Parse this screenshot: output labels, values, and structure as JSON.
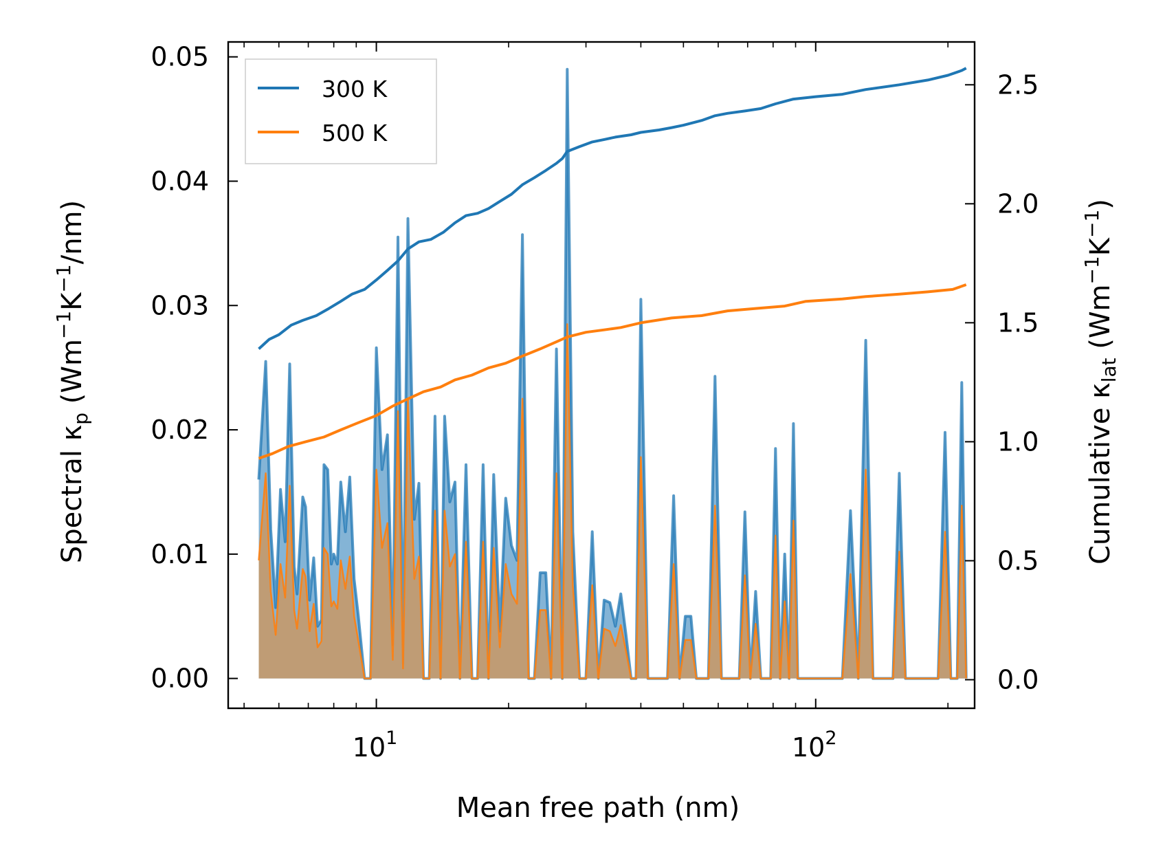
{
  "chart_data": {
    "type": "line",
    "xscale": "log",
    "xlabel": "Mean free path (nm)",
    "ylabel_left": {
      "text": "Spectral κ",
      "sub": "p",
      "unit_pre": " (Wm",
      "sup1": "−1",
      "unit_mid": "K",
      "sup2": "−1",
      "unit_post": "/nm)"
    },
    "ylabel_right": {
      "text": "Cumulative κ",
      "sub": "lat",
      "unit_pre": " (Wm",
      "sup1": "−1",
      "unit_mid": "K",
      "sup2": "−1",
      "unit_post": ")"
    },
    "xlim": [
      4.6,
      230
    ],
    "ylim_left": [
      -0.0024,
      0.0512
    ],
    "ylim_right": [
      -0.12,
      2.68
    ],
    "x_ticks": [
      {
        "value": 10,
        "base": "10",
        "exp": "1"
      },
      {
        "value": 100,
        "base": "10",
        "exp": "2"
      }
    ],
    "y_left_ticks": [
      "0.00",
      "0.01",
      "0.02",
      "0.03",
      "0.04",
      "0.05"
    ],
    "y_right_ticks": [
      "0.0",
      "0.5",
      "1.0",
      "1.5",
      "2.0",
      "2.5"
    ],
    "legend": [
      {
        "label": "300 K",
        "color": "#1f77b4"
      },
      {
        "label": "500 K",
        "color": "#ff7f0e"
      }
    ],
    "colors": {
      "s300": "#1f77b4",
      "s500": "#ff7f0e",
      "fill500": "#c49a6c"
    },
    "spectral_300K": [
      [
        5.4,
        0.016
      ],
      [
        5.6,
        0.0255
      ],
      [
        5.75,
        0.012
      ],
      [
        5.9,
        0.0057
      ],
      [
        6.05,
        0.0152
      ],
      [
        6.2,
        0.011
      ],
      [
        6.35,
        0.0253
      ],
      [
        6.5,
        0.009
      ],
      [
        6.6,
        0.0068
      ],
      [
        6.8,
        0.0146
      ],
      [
        6.9,
        0.0138
      ],
      [
        7.05,
        0.0063
      ],
      [
        7.2,
        0.0097
      ],
      [
        7.35,
        0.0042
      ],
      [
        7.5,
        0.0047
      ],
      [
        7.6,
        0.0172
      ],
      [
        7.75,
        0.0168
      ],
      [
        7.9,
        0.0092
      ],
      [
        8.0,
        0.01
      ],
      [
        8.15,
        0.0092
      ],
      [
        8.3,
        0.0158
      ],
      [
        8.5,
        0.0118
      ],
      [
        8.7,
        0.0162
      ],
      [
        8.9,
        0.008
      ],
      [
        9.1,
        0.005
      ],
      [
        9.4,
        0.0
      ],
      [
        9.7,
        0.0
      ],
      [
        10.0,
        0.0266
      ],
      [
        10.3,
        0.0168
      ],
      [
        10.6,
        0.0196
      ],
      [
        10.9,
        0.0027
      ],
      [
        11.2,
        0.0355
      ],
      [
        11.5,
        0.0012
      ],
      [
        11.8,
        0.037
      ],
      [
        12.2,
        0.0128
      ],
      [
        12.5,
        0.0157
      ],
      [
        12.8,
        0.0
      ],
      [
        13.2,
        0.0
      ],
      [
        13.6,
        0.0211
      ],
      [
        14.0,
        0.0
      ],
      [
        14.3,
        0.0211
      ],
      [
        14.7,
        0.0142
      ],
      [
        15.1,
        0.0158
      ],
      [
        15.5,
        0.0
      ],
      [
        16.0,
        0.0172
      ],
      [
        16.5,
        0.0
      ],
      [
        17.0,
        0.0
      ],
      [
        17.5,
        0.0172
      ],
      [
        18.0,
        0.0
      ],
      [
        18.5,
        0.0164
      ],
      [
        19.1,
        0.0038
      ],
      [
        19.7,
        0.0145
      ],
      [
        20.3,
        0.0107
      ],
      [
        20.9,
        0.0095
      ],
      [
        21.5,
        0.0357
      ],
      [
        22.2,
        0.0
      ],
      [
        22.9,
        0.0
      ],
      [
        23.6,
        0.0085
      ],
      [
        24.3,
        0.0085
      ],
      [
        25.0,
        0.0
      ],
      [
        25.7,
        0.0265
      ],
      [
        26.5,
        0.0
      ],
      [
        27.2,
        0.049
      ],
      [
        28.0,
        0.0118
      ],
      [
        29.0,
        0.0
      ],
      [
        30.0,
        0.0
      ],
      [
        31.0,
        0.0118
      ],
      [
        32.0,
        0.0
      ],
      [
        33.0,
        0.0063
      ],
      [
        34.0,
        0.0061
      ],
      [
        35.0,
        0.0042
      ],
      [
        36.0,
        0.0068
      ],
      [
        37.0,
        0.0035
      ],
      [
        38.0,
        0.0
      ],
      [
        39.0,
        0.0
      ],
      [
        40.0,
        0.0305
      ],
      [
        41.5,
        0.0
      ],
      [
        43.0,
        0.0
      ],
      [
        44.5,
        0.0
      ],
      [
        46.0,
        0.0
      ],
      [
        47.5,
        0.0147
      ],
      [
        49.0,
        0.0
      ],
      [
        50.5,
        0.005
      ],
      [
        52.0,
        0.005
      ],
      [
        53.5,
        0.0
      ],
      [
        55.0,
        0.0
      ],
      [
        57.0,
        0.0
      ],
      [
        59.0,
        0.0243
      ],
      [
        61.0,
        0.0
      ],
      [
        63.0,
        0.0
      ],
      [
        65.0,
        0.0
      ],
      [
        67.0,
        0.0
      ],
      [
        69.0,
        0.0134
      ],
      [
        71.0,
        0.0
      ],
      [
        73.0,
        0.007
      ],
      [
        75.0,
        0.0
      ],
      [
        77.0,
        0.0
      ],
      [
        79.0,
        0.0
      ],
      [
        81.0,
        0.0185
      ],
      [
        83.0,
        0.0
      ],
      [
        85.0,
        0.01
      ],
      [
        87.0,
        0.0
      ],
      [
        89.0,
        0.0205
      ],
      [
        91.0,
        0.0
      ],
      [
        95.0,
        0.0
      ],
      [
        100.0,
        0.0
      ],
      [
        105.0,
        0.0
      ],
      [
        110.0,
        0.0
      ],
      [
        115.0,
        0.0
      ],
      [
        120.0,
        0.0135
      ],
      [
        125.0,
        0.0
      ],
      [
        130.0,
        0.0272
      ],
      [
        135.0,
        0.0
      ],
      [
        140.0,
        0.0
      ],
      [
        150.0,
        0.0
      ],
      [
        155.0,
        0.0165
      ],
      [
        160.0,
        0.0
      ],
      [
        170.0,
        0.0
      ],
      [
        180.0,
        0.0
      ],
      [
        190.0,
        0.0
      ],
      [
        197.0,
        0.0198
      ],
      [
        203.0,
        0.0
      ],
      [
        210.0,
        0.0
      ],
      [
        215.0,
        0.0238
      ],
      [
        220.0,
        0.0
      ]
    ],
    "spectral_500K": [
      [
        5.4,
        0.0095
      ],
      [
        5.6,
        0.0165
      ],
      [
        5.75,
        0.007
      ],
      [
        5.9,
        0.0035
      ],
      [
        6.05,
        0.0092
      ],
      [
        6.2,
        0.0065
      ],
      [
        6.35,
        0.0155
      ],
      [
        6.5,
        0.0055
      ],
      [
        6.6,
        0.004
      ],
      [
        6.8,
        0.0088
      ],
      [
        6.9,
        0.0082
      ],
      [
        7.05,
        0.0038
      ],
      [
        7.2,
        0.006
      ],
      [
        7.35,
        0.0025
      ],
      [
        7.5,
        0.003
      ],
      [
        7.6,
        0.0105
      ],
      [
        7.75,
        0.01
      ],
      [
        7.9,
        0.0058
      ],
      [
        8.0,
        0.0062
      ],
      [
        8.15,
        0.0056
      ],
      [
        8.3,
        0.0095
      ],
      [
        8.5,
        0.0072
      ],
      [
        8.7,
        0.0098
      ],
      [
        8.9,
        0.005
      ],
      [
        9.1,
        0.003
      ],
      [
        9.4,
        0.0
      ],
      [
        9.7,
        0.0
      ],
      [
        10.0,
        0.0168
      ],
      [
        10.3,
        0.0105
      ],
      [
        10.6,
        0.0125
      ],
      [
        10.9,
        0.0015
      ],
      [
        11.2,
        0.0215
      ],
      [
        11.5,
        0.0008
      ],
      [
        11.8,
        0.0225
      ],
      [
        12.2,
        0.008
      ],
      [
        12.5,
        0.0098
      ],
      [
        12.8,
        0.0
      ],
      [
        13.2,
        0.0
      ],
      [
        13.6,
        0.0135
      ],
      [
        14.0,
        0.0
      ],
      [
        14.3,
        0.0135
      ],
      [
        14.7,
        0.009
      ],
      [
        15.1,
        0.01
      ],
      [
        15.5,
        0.0
      ],
      [
        16.0,
        0.011
      ],
      [
        16.5,
        0.0
      ],
      [
        17.0,
        0.0
      ],
      [
        17.5,
        0.011
      ],
      [
        18.0,
        0.0
      ],
      [
        18.5,
        0.0105
      ],
      [
        19.1,
        0.0025
      ],
      [
        19.7,
        0.0092
      ],
      [
        20.3,
        0.0068
      ],
      [
        20.9,
        0.006
      ],
      [
        21.5,
        0.0225
      ],
      [
        22.2,
        0.0
      ],
      [
        22.9,
        0.0
      ],
      [
        23.6,
        0.0055
      ],
      [
        24.3,
        0.0055
      ],
      [
        25.0,
        0.0
      ],
      [
        25.7,
        0.0165
      ],
      [
        26.5,
        0.0
      ],
      [
        27.2,
        0.0285
      ],
      [
        28.0,
        0.0075
      ],
      [
        29.0,
        0.0
      ],
      [
        30.0,
        0.0
      ],
      [
        31.0,
        0.0075
      ],
      [
        32.0,
        0.0
      ],
      [
        33.0,
        0.004
      ],
      [
        34.0,
        0.0038
      ],
      [
        35.0,
        0.0026
      ],
      [
        36.0,
        0.0043
      ],
      [
        37.0,
        0.0022
      ],
      [
        38.0,
        0.0
      ],
      [
        39.0,
        0.0
      ],
      [
        40.0,
        0.0178
      ],
      [
        41.5,
        0.0
      ],
      [
        43.0,
        0.0
      ],
      [
        44.5,
        0.0
      ],
      [
        46.0,
        0.0
      ],
      [
        47.5,
        0.0092
      ],
      [
        49.0,
        0.0
      ],
      [
        50.5,
        0.0031
      ],
      [
        52.0,
        0.0031
      ],
      [
        53.5,
        0.0
      ],
      [
        55.0,
        0.0
      ],
      [
        57.0,
        0.0
      ],
      [
        59.0,
        0.0139
      ],
      [
        61.0,
        0.0
      ],
      [
        63.0,
        0.0
      ],
      [
        65.0,
        0.0
      ],
      [
        67.0,
        0.0
      ],
      [
        69.0,
        0.0083
      ],
      [
        71.0,
        0.0
      ],
      [
        73.0,
        0.0044
      ],
      [
        75.0,
        0.0
      ],
      [
        77.0,
        0.0
      ],
      [
        79.0,
        0.0
      ],
      [
        81.0,
        0.0115
      ],
      [
        83.0,
        0.0
      ],
      [
        85.0,
        0.0062
      ],
      [
        87.0,
        0.0
      ],
      [
        89.0,
        0.0127
      ],
      [
        91.0,
        0.0
      ],
      [
        95.0,
        0.0
      ],
      [
        100.0,
        0.0
      ],
      [
        105.0,
        0.0
      ],
      [
        110.0,
        0.0
      ],
      [
        115.0,
        0.0
      ],
      [
        120.0,
        0.0084
      ],
      [
        125.0,
        0.0
      ],
      [
        130.0,
        0.0168
      ],
      [
        135.0,
        0.0
      ],
      [
        140.0,
        0.0
      ],
      [
        150.0,
        0.0
      ],
      [
        155.0,
        0.0102
      ],
      [
        160.0,
        0.0
      ],
      [
        170.0,
        0.0
      ],
      [
        180.0,
        0.0
      ],
      [
        190.0,
        0.0
      ],
      [
        197.0,
        0.0118
      ],
      [
        203.0,
        0.0
      ],
      [
        210.0,
        0.0
      ],
      [
        215.0,
        0.0139
      ],
      [
        220.0,
        0.0
      ]
    ],
    "cumulative_300K": [
      [
        5.4,
        1.39
      ],
      [
        5.7,
        1.43
      ],
      [
        6.0,
        1.45
      ],
      [
        6.4,
        1.49
      ],
      [
        6.8,
        1.51
      ],
      [
        7.3,
        1.53
      ],
      [
        7.8,
        1.56
      ],
      [
        8.3,
        1.59
      ],
      [
        8.8,
        1.62
      ],
      [
        9.4,
        1.64
      ],
      [
        10.0,
        1.68
      ],
      [
        10.6,
        1.72
      ],
      [
        11.2,
        1.76
      ],
      [
        11.8,
        1.81
      ],
      [
        12.5,
        1.84
      ],
      [
        13.3,
        1.85
      ],
      [
        14.2,
        1.88
      ],
      [
        15.1,
        1.92
      ],
      [
        16.0,
        1.95
      ],
      [
        17.0,
        1.96
      ],
      [
        18.0,
        1.98
      ],
      [
        19.1,
        2.01
      ],
      [
        20.3,
        2.04
      ],
      [
        21.5,
        2.08
      ],
      [
        22.9,
        2.11
      ],
      [
        24.3,
        2.14
      ],
      [
        25.7,
        2.17
      ],
      [
        26.5,
        2.19
      ],
      [
        27.2,
        2.22
      ],
      [
        29.0,
        2.24
      ],
      [
        31.0,
        2.26
      ],
      [
        33.0,
        2.27
      ],
      [
        35.0,
        2.28
      ],
      [
        38.0,
        2.29
      ],
      [
        40.0,
        2.3
      ],
      [
        44.0,
        2.31
      ],
      [
        47.0,
        2.32
      ],
      [
        50.0,
        2.33
      ],
      [
        55.0,
        2.35
      ],
      [
        59.0,
        2.37
      ],
      [
        63.0,
        2.38
      ],
      [
        69.0,
        2.39
      ],
      [
        75.0,
        2.4
      ],
      [
        81.0,
        2.42
      ],
      [
        89.0,
        2.44
      ],
      [
        100.0,
        2.45
      ],
      [
        115.0,
        2.46
      ],
      [
        130.0,
        2.48
      ],
      [
        155.0,
        2.5
      ],
      [
        180.0,
        2.52
      ],
      [
        200.0,
        2.54
      ],
      [
        215.0,
        2.56
      ],
      [
        220.0,
        2.57
      ]
    ],
    "cumulative_500K": [
      [
        5.4,
        0.93
      ],
      [
        5.8,
        0.95
      ],
      [
        6.3,
        0.98
      ],
      [
        6.9,
        1.0
      ],
      [
        7.6,
        1.02
      ],
      [
        8.3,
        1.05
      ],
      [
        9.1,
        1.08
      ],
      [
        10.0,
        1.11
      ],
      [
        10.9,
        1.15
      ],
      [
        11.8,
        1.18
      ],
      [
        12.8,
        1.21
      ],
      [
        14.0,
        1.23
      ],
      [
        15.1,
        1.26
      ],
      [
        16.5,
        1.28
      ],
      [
        18.0,
        1.31
      ],
      [
        19.7,
        1.33
      ],
      [
        21.5,
        1.36
      ],
      [
        23.6,
        1.39
      ],
      [
        25.7,
        1.42
      ],
      [
        27.2,
        1.44
      ],
      [
        30.0,
        1.46
      ],
      [
        33.0,
        1.47
      ],
      [
        36.0,
        1.48
      ],
      [
        40.0,
        1.5
      ],
      [
        47.0,
        1.52
      ],
      [
        55.0,
        1.53
      ],
      [
        63.0,
        1.55
      ],
      [
        73.0,
        1.56
      ],
      [
        85.0,
        1.57
      ],
      [
        95.0,
        1.59
      ],
      [
        115.0,
        1.6
      ],
      [
        130.0,
        1.61
      ],
      [
        155.0,
        1.62
      ],
      [
        180.0,
        1.63
      ],
      [
        205.0,
        1.64
      ],
      [
        220.0,
        1.66
      ]
    ]
  }
}
